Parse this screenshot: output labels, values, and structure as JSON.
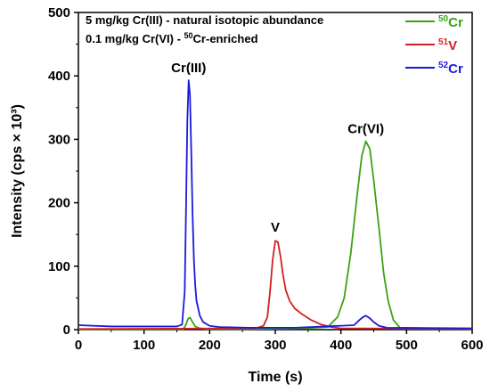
{
  "chart_data": {
    "type": "line",
    "xlabel": "Time (s)",
    "ylabel": "Intensity (cps × 10³)",
    "xlim": [
      0,
      600
    ],
    "ylim": [
      0,
      500
    ],
    "xticks": [
      0,
      100,
      200,
      300,
      400,
      500,
      600
    ],
    "yticks": [
      0,
      100,
      200,
      300,
      400,
      500
    ],
    "grid": false,
    "legend_position": "top-right",
    "annotations": [
      {
        "text": "5 mg/kg Cr(III) - natural isotopic abundance"
      },
      {
        "text_before": "0.1 mg/kg Cr(VI) - ",
        "sup": "50",
        "text_after": "Cr-enriched"
      }
    ],
    "peak_labels": [
      {
        "text": "Cr(III)",
        "x": 168,
        "y": 393
      },
      {
        "text": "V",
        "x": 300,
        "y": 142
      },
      {
        "text": "Cr(VI)",
        "x": 438,
        "y": 297
      }
    ],
    "series": [
      {
        "name": "⁵⁰Cr",
        "sup": "50",
        "base": "Cr",
        "color": "#3aa312",
        "x": [
          0,
          160,
          164,
          167,
          170,
          174,
          178,
          185,
          195,
          260,
          340,
          380,
          395,
          405,
          415,
          425,
          432,
          438,
          444,
          450,
          458,
          465,
          472,
          480,
          490,
          600
        ],
        "y": [
          0.5,
          1,
          8,
          17,
          19,
          12,
          5,
          2,
          1,
          1,
          2,
          4,
          20,
          50,
          120,
          215,
          275,
          297,
          285,
          235,
          160,
          90,
          45,
          15,
          3,
          1
        ]
      },
      {
        "name": "⁵¹V",
        "sup": "51",
        "base": "V",
        "color": "#d42020",
        "x": [
          0,
          270,
          282,
          288,
          292,
          296,
          300,
          304,
          308,
          312,
          316,
          322,
          330,
          340,
          355,
          370,
          385,
          400,
          600
        ],
        "y": [
          1,
          2,
          6,
          20,
          60,
          110,
          140,
          138,
          115,
          85,
          62,
          45,
          33,
          25,
          15,
          8,
          4,
          2,
          1
        ]
      },
      {
        "name": "⁵²Cr",
        "sup": "52",
        "base": "Cr",
        "color": "#1a1adb",
        "x": [
          0,
          50,
          100,
          150,
          158,
          162,
          164,
          166,
          168,
          170,
          172,
          174,
          176,
          178,
          180,
          185,
          190,
          200,
          215,
          260,
          330,
          420,
          428,
          434,
          438,
          444,
          450,
          458,
          470,
          600
        ],
        "y": [
          7,
          5,
          5,
          5,
          8,
          60,
          190,
          330,
          393,
          370,
          280,
          180,
          110,
          70,
          45,
          22,
          12,
          6,
          4,
          3,
          3,
          7,
          15,
          20,
          22,
          18,
          12,
          6,
          3,
          2
        ]
      }
    ]
  }
}
